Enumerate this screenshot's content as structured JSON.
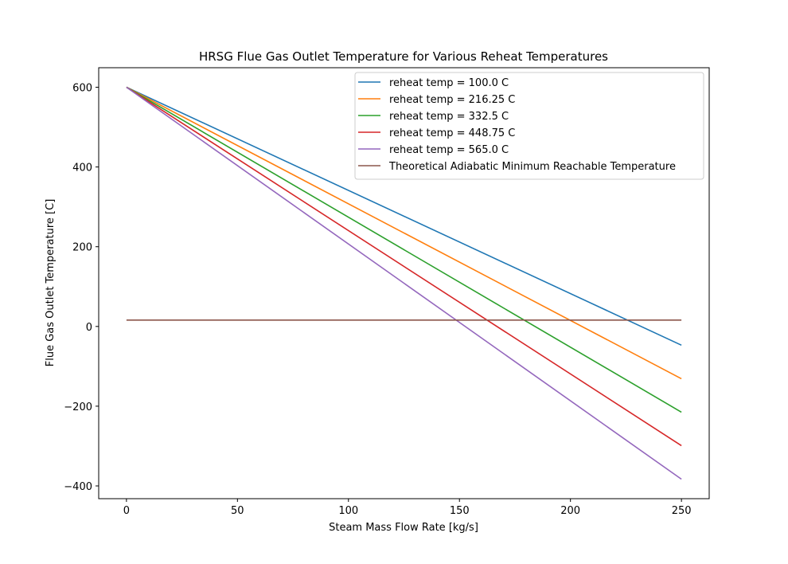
{
  "chart_data": {
    "type": "line",
    "title": "HRSG Flue Gas Outlet Temperature for Various Reheat Temperatures",
    "xlabel": "Steam Mass Flow Rate [kg/s]",
    "ylabel": "Flue Gas Outlet Temperature [C]",
    "xlim": [
      -12.5,
      262.5
    ],
    "ylim": [
      -432,
      649
    ],
    "xticks": [
      0,
      50,
      100,
      150,
      200,
      250
    ],
    "xtick_labels": [
      "0",
      "50",
      "100",
      "150",
      "200",
      "250"
    ],
    "yticks": [
      -400,
      -200,
      0,
      200,
      400,
      600
    ],
    "ytick_labels": [
      "−400",
      "−200",
      "0",
      "200",
      "400",
      "600"
    ],
    "grid": false,
    "legend_position": "top-right",
    "series": [
      {
        "name": "reheat temp = 100.0 C",
        "color": "#1f77b4",
        "x": [
          0,
          250
        ],
        "y": [
          600,
          -47
        ]
      },
      {
        "name": "reheat temp = 216.25 C",
        "color": "#ff7f0e",
        "x": [
          0,
          250
        ],
        "y": [
          600,
          -131
        ]
      },
      {
        "name": "reheat temp = 332.5 C",
        "color": "#2ca02c",
        "x": [
          0,
          250
        ],
        "y": [
          600,
          -215
        ]
      },
      {
        "name": "reheat temp = 448.75 C",
        "color": "#d62728",
        "x": [
          0,
          250
        ],
        "y": [
          600,
          -299
        ]
      },
      {
        "name": "reheat temp = 565.0 C",
        "color": "#9467bd",
        "x": [
          0,
          250
        ],
        "y": [
          600,
          -383
        ]
      },
      {
        "name": "Theoretical Adiabatic Minimum Reachable Temperature",
        "color": "#8c564b",
        "x": [
          0,
          250
        ],
        "y": [
          16,
          16
        ]
      }
    ]
  }
}
